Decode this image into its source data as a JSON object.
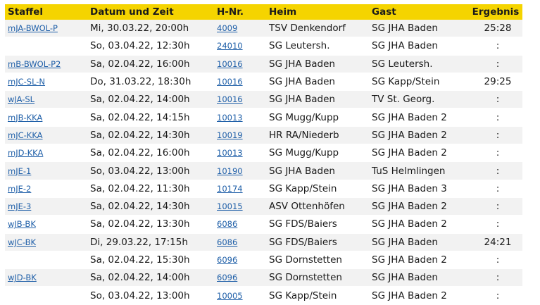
{
  "headers": {
    "staffel": "Staffel",
    "datum": "Datum und Zeit",
    "hnr": "H-Nr.",
    "heim": "Heim",
    "gast": "Gast",
    "ergebnis": "Ergebnis"
  },
  "colors": {
    "header_bg": "#f5d400",
    "link": "#1f5fa8",
    "row_alt": "#f2f2f2"
  },
  "rows": [
    {
      "staffel": "mJA-BWOL-P",
      "datum": "Mi, 30.03.22, 20:00h",
      "hnr": "4009",
      "heim": "TSV Denkendorf",
      "gast": "SG JHA Baden",
      "ergebnis": "25:28"
    },
    {
      "staffel": "",
      "datum": "So, 03.04.22, 12:30h",
      "hnr": "24010",
      "heim": "SG Leutersh.",
      "gast": "SG JHA Baden",
      "ergebnis": ":"
    },
    {
      "staffel": "mB-BWOL-P2",
      "datum": "Sa, 02.04.22, 16:00h",
      "hnr": "10016",
      "heim": "SG JHA Baden",
      "gast": "SG Leutersh.",
      "ergebnis": ":"
    },
    {
      "staffel": "mJC-SL-N",
      "datum": "Do, 31.03.22, 18:30h",
      "hnr": "10016",
      "heim": "SG JHA Baden",
      "gast": "SG Kapp/Stein",
      "ergebnis": "29:25"
    },
    {
      "staffel": "wJA-SL",
      "datum": "Sa, 02.04.22, 14:00h",
      "hnr": "10016",
      "heim": "SG JHA Baden",
      "gast": "TV St. Georg.",
      "ergebnis": ":"
    },
    {
      "staffel": "mJB-KKA",
      "datum": "Sa, 02.04.22, 14:15h",
      "hnr": "10013",
      "heim": "SG Mugg/Kupp",
      "gast": "SG JHA Baden 2",
      "ergebnis": ":"
    },
    {
      "staffel": "mJC-KKA",
      "datum": "Sa, 02.04.22, 14:30h",
      "hnr": "10019",
      "heim": "HR RA/Niederb",
      "gast": "SG JHA Baden 2",
      "ergebnis": ":"
    },
    {
      "staffel": "mJD-KKA",
      "datum": "Sa, 02.04.22, 16:00h",
      "hnr": "10013",
      "heim": "SG Mugg/Kupp",
      "gast": "SG JHA Baden 2",
      "ergebnis": ":"
    },
    {
      "staffel": "mJE-1",
      "datum": "So, 03.04.22, 13:00h",
      "hnr": "10190",
      "heim": "SG JHA Baden",
      "gast": "TuS Helmlingen",
      "ergebnis": ":"
    },
    {
      "staffel": "mJE-2",
      "datum": "Sa, 02.04.22, 11:30h",
      "hnr": "10174",
      "heim": "SG Kapp/Stein",
      "gast": "SG JHA Baden 3",
      "ergebnis": ":"
    },
    {
      "staffel": "mJE-3",
      "datum": "Sa, 02.04.22, 14:30h",
      "hnr": "10015",
      "heim": "ASV Ottenhöfen",
      "gast": "SG JHA Baden 2",
      "ergebnis": ":"
    },
    {
      "staffel": "wJB-BK",
      "datum": "Sa, 02.04.22, 13:30h",
      "hnr": "6086",
      "heim": "SG FDS/Baiers",
      "gast": "SG JHA Baden 2",
      "ergebnis": ":"
    },
    {
      "staffel": "wJC-BK",
      "datum": "Di, 29.03.22, 17:15h",
      "hnr": "6086",
      "heim": "SG FDS/Baiers",
      "gast": "SG JHA Baden",
      "ergebnis": "24:21"
    },
    {
      "staffel": "",
      "datum": "Sa, 02.04.22, 15:30h",
      "hnr": "6096",
      "heim": "SG Dornstetten",
      "gast": "SG JHA Baden 2",
      "ergebnis": ":"
    },
    {
      "staffel": "wJD-BK",
      "datum": "Sa, 02.04.22, 14:00h",
      "hnr": "6096",
      "heim": "SG Dornstetten",
      "gast": "SG JHA Baden",
      "ergebnis": ":"
    },
    {
      "staffel": "",
      "datum": "So, 03.04.22, 13:00h",
      "hnr": "10005",
      "heim": "SG Kapp/Stein",
      "gast": "SG JHA Baden 2",
      "ergebnis": ":"
    }
  ]
}
